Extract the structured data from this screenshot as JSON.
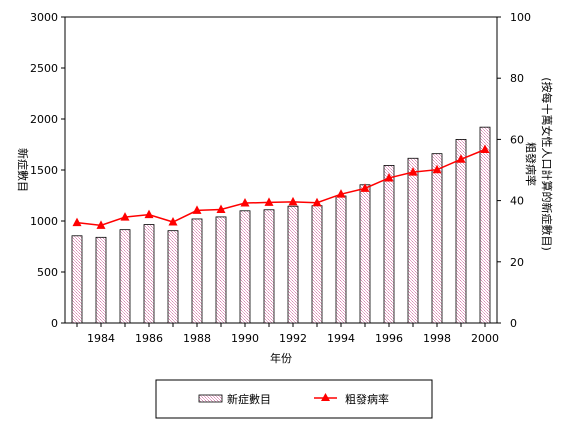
{
  "chart_data": {
    "type": "bar",
    "x": [
      1983,
      1984,
      1985,
      1986,
      1987,
      1988,
      1989,
      1990,
      1991,
      1992,
      1993,
      1994,
      1995,
      1996,
      1997,
      1998,
      1999,
      2000
    ],
    "x_tick_labels": [
      "1984",
      "1986",
      "1988",
      "1990",
      "1992",
      "1994",
      "1996",
      "1998",
      "2000"
    ],
    "xlabel": "年份",
    "ylabel_left": "新症數目",
    "ylabel_right": "粗發病率\n(按每十萬女性人口計算的新症數目)",
    "ylim_left": [
      0,
      3000
    ],
    "yticks_left": [
      0,
      500,
      1000,
      1500,
      2000,
      2500,
      3000
    ],
    "ylim_right": [
      0,
      100
    ],
    "yticks_right": [
      0,
      20,
      40,
      60,
      80,
      100
    ],
    "series": [
      {
        "name": "新症數目",
        "type": "bar",
        "axis": "left",
        "color": "#e8a6c8",
        "values": [
          855,
          840,
          915,
          965,
          905,
          1020,
          1040,
          1100,
          1110,
          1145,
          1150,
          1245,
          1355,
          1545,
          1615,
          1660,
          1800,
          1920
        ]
      },
      {
        "name": "粗發病率",
        "type": "line",
        "axis": "right",
        "color": "#ff0000",
        "values": [
          32.8,
          31.9,
          34.6,
          35.4,
          33.0,
          36.8,
          37.1,
          39.2,
          39.4,
          39.6,
          39.3,
          42.1,
          44.0,
          47.4,
          49.3,
          50.1,
          53.5,
          56.7
        ]
      }
    ]
  }
}
